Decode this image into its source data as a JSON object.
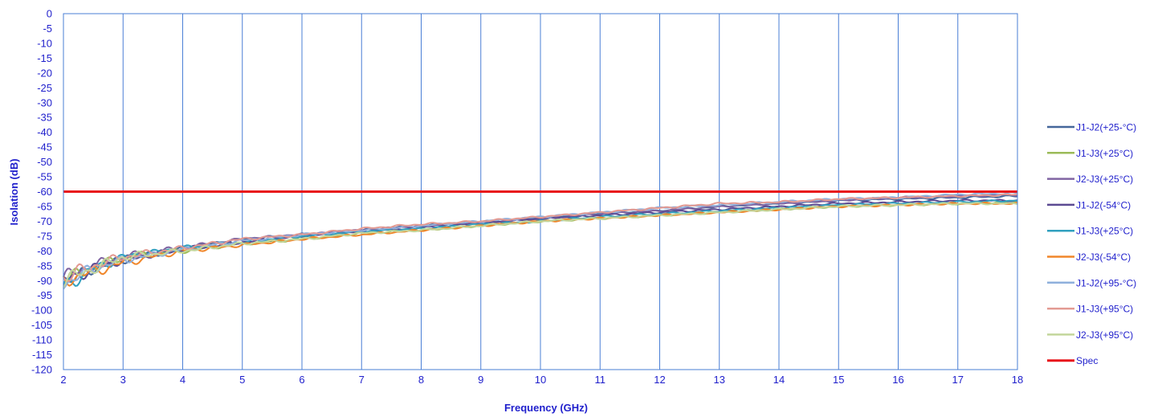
{
  "chart_data": {
    "type": "line",
    "xlabel": "Frequency (GHz)",
    "ylabel": "Isolation  (dB)",
    "xlim": [
      2,
      18
    ],
    "ylim": [
      -120,
      0
    ],
    "xticks": [
      "2",
      "3",
      "4",
      "5",
      "6",
      "7",
      "8",
      "9",
      "10",
      "11",
      "12",
      "13",
      "14",
      "15",
      "16",
      "17",
      "18"
    ],
    "yticks": [
      "0",
      "-5",
      "-10",
      "-15",
      "-20",
      "-25",
      "-30",
      "-35",
      "-40",
      "-45",
      "-50",
      "-55",
      "-60",
      "-65",
      "-70",
      "-75",
      "-80",
      "-85",
      "-90",
      "-95",
      "-100",
      "-105",
      "-110",
      "-115",
      "-120"
    ],
    "grid": "vertical",
    "legend_position": "right",
    "x": [
      2,
      2.5,
      3,
      4,
      5,
      6,
      7,
      8,
      9,
      10,
      11,
      12,
      13,
      14,
      15,
      16,
      17,
      18
    ],
    "series": [
      {
        "name": "J1-J2(+25-°C)",
        "color": "#44679a",
        "values": [
          -91,
          -86,
          -83,
          -79,
          -76,
          -74.5,
          -73,
          -71.5,
          -70,
          -69,
          -67.5,
          -66.5,
          -65,
          -64,
          -63,
          -62.5,
          -62,
          -61.5
        ]
      },
      {
        "name": "J1-J3(+25°C)",
        "color": "#9bbb59",
        "values": [
          -90,
          -86,
          -82,
          -80,
          -77.5,
          -76,
          -74,
          -73,
          -71.5,
          -70,
          -69,
          -68,
          -67,
          -66,
          -65,
          -64.5,
          -64,
          -63.5
        ]
      },
      {
        "name": "J2-J3(+25°C)",
        "color": "#8064a2",
        "values": [
          -89,
          -85,
          -82,
          -79,
          -76,
          -74.5,
          -73,
          -71.5,
          -70.5,
          -69,
          -67.5,
          -66.5,
          -65,
          -64,
          -63,
          -62,
          -61.5,
          -61
        ]
      },
      {
        "name": "J1-J2(-54°C)",
        "color": "#5b4a92",
        "values": [
          -90,
          -86,
          -83,
          -79.5,
          -77,
          -75,
          -73.5,
          -72,
          -70.5,
          -69,
          -68,
          -67,
          -66,
          -65,
          -64,
          -63.5,
          -63,
          -63
        ]
      },
      {
        "name": "J1-J3(+25°C)",
        "color": "#31a0bf",
        "values": [
          -92,
          -86,
          -82,
          -79,
          -77,
          -75,
          -73.5,
          -72.5,
          -71,
          -70,
          -68.5,
          -67.5,
          -66.5,
          -65.5,
          -64.5,
          -64,
          -63.5,
          -63
        ]
      },
      {
        "name": "J2-J3(-54°C)",
        "color": "#f0862a",
        "values": [
          -90,
          -87,
          -84,
          -80,
          -78,
          -76,
          -74.5,
          -73,
          -71.5,
          -70,
          -69,
          -68,
          -67,
          -66,
          -65,
          -64.5,
          -64,
          -64
        ]
      },
      {
        "name": "J1-J2(+95-°C)",
        "color": "#8fb0dc",
        "values": [
          -91,
          -86,
          -83,
          -79.5,
          -76.5,
          -74.5,
          -73,
          -71.5,
          -70,
          -68.5,
          -67,
          -65.5,
          -64.5,
          -63.5,
          -62.5,
          -62,
          -61,
          -60.5
        ]
      },
      {
        "name": "J1-J3(+95°C)",
        "color": "#e39a92",
        "values": [
          -89,
          -85,
          -82,
          -79,
          -76,
          -74.5,
          -72.5,
          -71,
          -70,
          -68.5,
          -67,
          -65.5,
          -64,
          -63.5,
          -62.5,
          -62,
          -61.5,
          -61
        ]
      },
      {
        "name": "J2-J3(+95°C)",
        "color": "#c3d69b",
        "values": [
          -90,
          -86,
          -82,
          -80,
          -77.5,
          -76,
          -74,
          -73,
          -71.5,
          -70,
          -69,
          -68,
          -67,
          -66,
          -65,
          -64.5,
          -64,
          -64
        ]
      },
      {
        "name": "Spec",
        "color": "#e8161b",
        "values": [
          -60,
          -60,
          -60,
          -60,
          -60,
          -60,
          -60,
          -60,
          -60,
          -60,
          -60,
          -60,
          -60,
          -60,
          -60,
          -60,
          -60,
          -60
        ]
      }
    ]
  }
}
